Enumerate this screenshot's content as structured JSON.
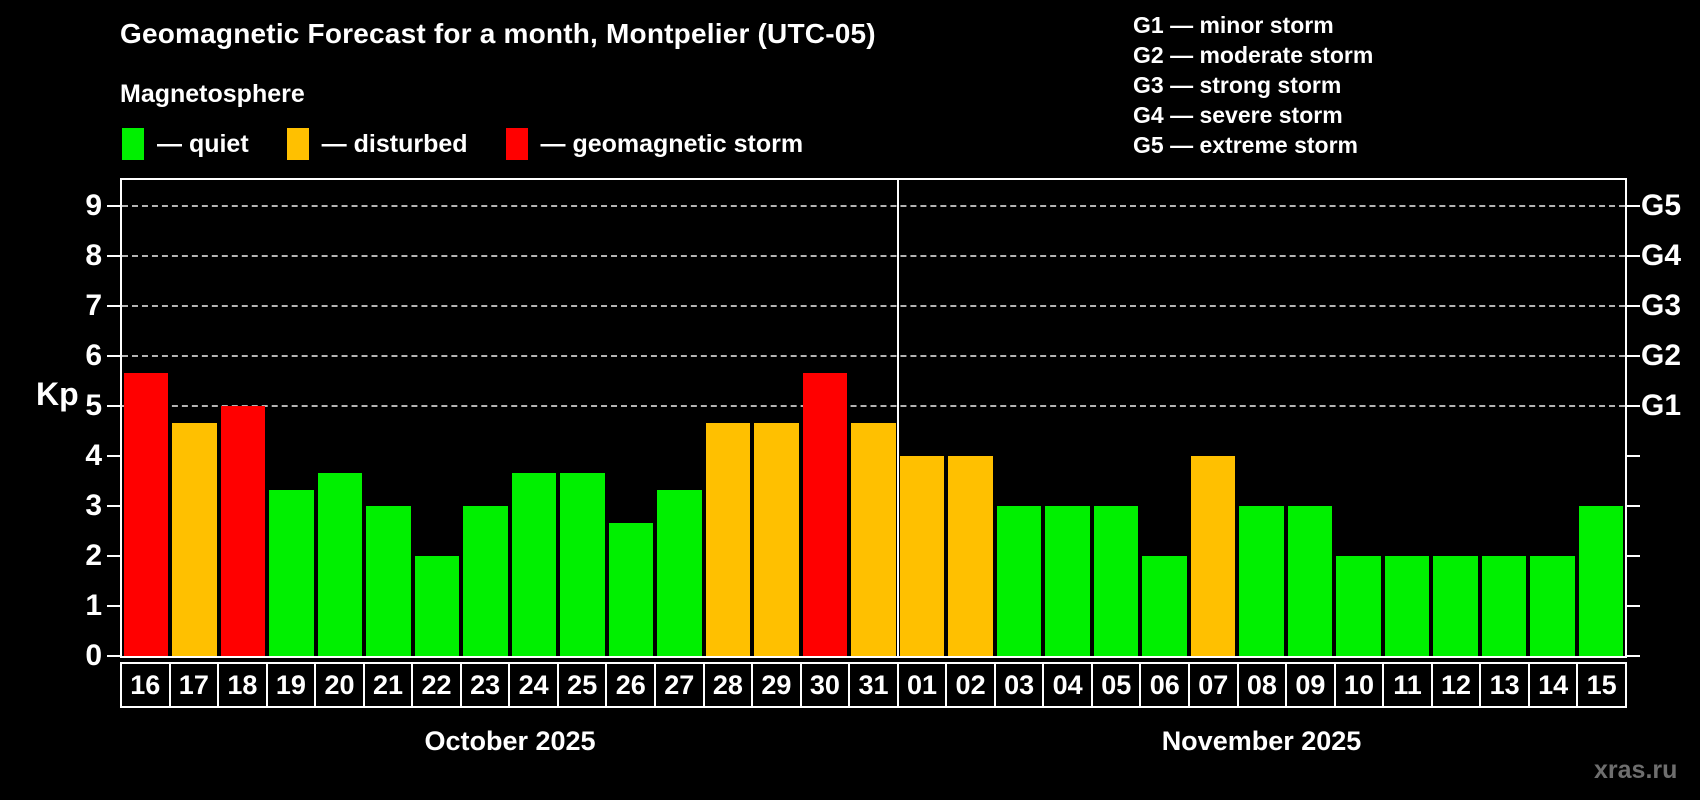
{
  "header": {
    "title": "Geomagnetic Forecast for a month, Montpelier (UTC-05)",
    "subtitle": "Magnetosphere"
  },
  "legend": {
    "items": [
      {
        "status": "quiet",
        "color": "#00f000",
        "label": "— quiet"
      },
      {
        "status": "disturbed",
        "color": "#ffc000",
        "label": "— disturbed"
      },
      {
        "status": "storm",
        "color": "#ff0000",
        "label": "— geomagnetic storm"
      }
    ]
  },
  "storm_scale_legend": {
    "items": [
      "G1 — minor storm",
      "G2 — moderate storm",
      "G3 — strong storm",
      "G4 — severe storm",
      "G5 — extreme storm"
    ]
  },
  "watermark": "xras.ru",
  "chart_data": {
    "type": "bar",
    "title": "Geomagnetic Forecast for a month, Montpelier (UTC-05)",
    "ylabel": "Kp",
    "ylim": [
      0,
      9.5
    ],
    "yticks": [
      0,
      1,
      2,
      3,
      4,
      5,
      6,
      7,
      8,
      9
    ],
    "gridlines_kp": [
      5,
      6,
      7,
      8,
      9
    ],
    "grid": "dashed horizontal lines at storm levels G1-G5",
    "legend_position": "top",
    "colors": {
      "quiet": "#00f000",
      "disturbed": "#ffc000",
      "storm": "#ff0000"
    },
    "right_axis": [
      {
        "label": "G1",
        "kp": 5
      },
      {
        "label": "G2",
        "kp": 6
      },
      {
        "label": "G3",
        "kp": 7
      },
      {
        "label": "G4",
        "kp": 8
      },
      {
        "label": "G5",
        "kp": 9
      }
    ],
    "months": [
      {
        "name": "October 2025",
        "days": [
          "16",
          "17",
          "18",
          "19",
          "20",
          "21",
          "22",
          "23",
          "24",
          "25",
          "26",
          "27",
          "28",
          "29",
          "30",
          "31"
        ],
        "kp": [
          5.67,
          4.67,
          5.0,
          3.33,
          3.67,
          3.0,
          2.0,
          3.0,
          3.67,
          3.67,
          2.67,
          3.33,
          4.67,
          4.67,
          5.67,
          4.67
        ],
        "status": [
          "storm",
          "disturbed",
          "storm",
          "quiet",
          "quiet",
          "quiet",
          "quiet",
          "quiet",
          "quiet",
          "quiet",
          "quiet",
          "quiet",
          "disturbed",
          "disturbed",
          "storm",
          "disturbed"
        ]
      },
      {
        "name": "November 2025",
        "days": [
          "01",
          "02",
          "03",
          "04",
          "05",
          "06",
          "07",
          "08",
          "09",
          "10",
          "11",
          "12",
          "13",
          "14",
          "15"
        ],
        "kp": [
          4.0,
          4.0,
          3.0,
          3.0,
          3.0,
          2.0,
          4.0,
          3.0,
          3.0,
          2.0,
          2.0,
          2.0,
          2.0,
          2.0,
          3.0
        ],
        "status": [
          "disturbed",
          "disturbed",
          "quiet",
          "quiet",
          "quiet",
          "quiet",
          "disturbed",
          "quiet",
          "quiet",
          "quiet",
          "quiet",
          "quiet",
          "quiet",
          "quiet",
          "quiet"
        ]
      }
    ]
  }
}
